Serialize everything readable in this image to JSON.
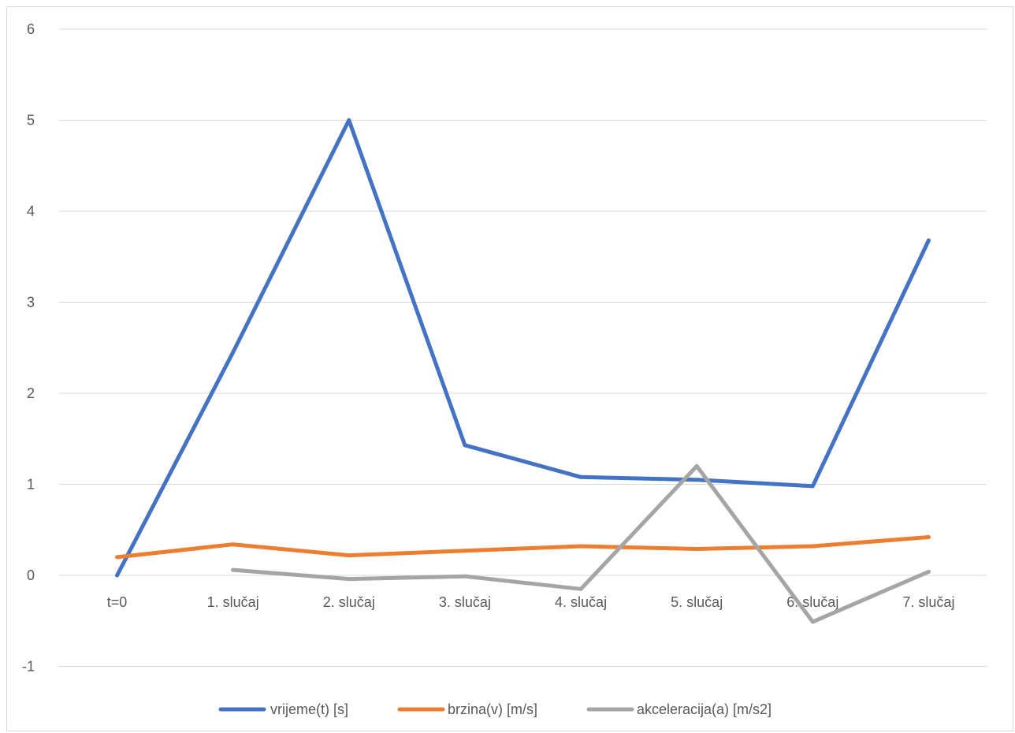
{
  "chart_data": {
    "type": "line",
    "title": "",
    "xlabel": "",
    "ylabel": "",
    "categories": [
      "t=0",
      "1. slučaj",
      "2. slučaj",
      "3. slučaj",
      "4. slučaj",
      "5. slučaj",
      "6. slučaj",
      "7. slučaj"
    ],
    "yticks": [
      "-1",
      "0",
      "1",
      "2",
      "3",
      "4",
      "5",
      "6"
    ],
    "ylim": [
      -1,
      6
    ],
    "grid": true,
    "legend_position": "bottom",
    "series": [
      {
        "name": "vrijeme(t) [s]",
        "color": "#4472C4",
        "values": [
          0,
          2.45,
          5.0,
          1.43,
          1.08,
          1.05,
          0.98,
          3.68
        ]
      },
      {
        "name": "brzina(v) [m/s]",
        "color": "#ED7D31",
        "values": [
          0.2,
          0.34,
          0.22,
          0.27,
          0.32,
          0.29,
          0.32,
          0.42
        ]
      },
      {
        "name": "akceleracija(a) [m/s2]",
        "color": "#A5A5A5",
        "values": [
          null,
          0.06,
          -0.04,
          -0.01,
          -0.15,
          1.2,
          -0.51,
          0.04
        ]
      }
    ]
  }
}
